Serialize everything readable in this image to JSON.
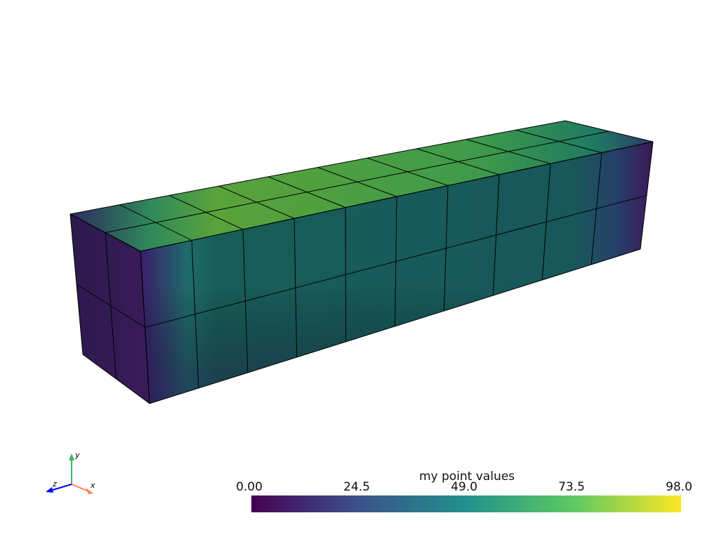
{
  "scalar_bar": {
    "title": "my point values",
    "ticks": [
      "0.00",
      "24.5",
      "49.0",
      "73.5",
      "98.0"
    ],
    "range": [
      0,
      98
    ],
    "colormap": "viridis",
    "colors": [
      "#440154",
      "#3b528b",
      "#21918c",
      "#5ec962",
      "#fde725"
    ]
  },
  "axes_widget": {
    "x_label": "x",
    "y_label": "y",
    "z_label": "z",
    "x_color": "#ff7f50",
    "y_color": "#3cb371",
    "z_color": "#0000ff"
  },
  "mesh": {
    "cells_length": 10,
    "cells_height": 2,
    "cells_depth": 2,
    "edge_color": "#000000"
  }
}
